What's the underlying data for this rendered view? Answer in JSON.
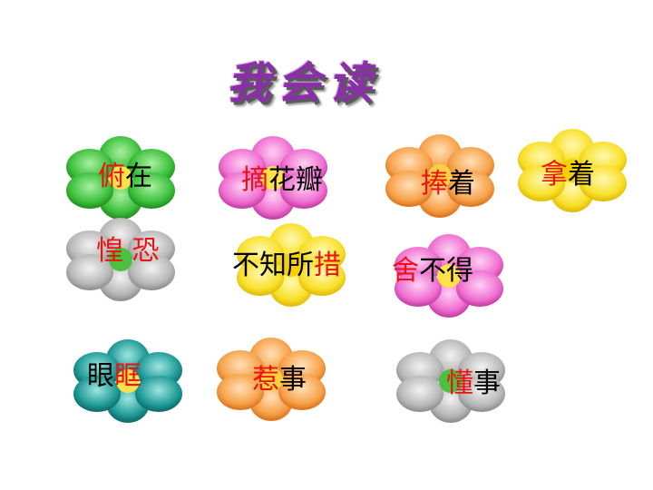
{
  "title": "我会读",
  "colors": {
    "highlight": "#ee1111",
    "normal": "#000000",
    "title": "#8a2fa8"
  },
  "items": [
    {
      "parts": [
        {
          "t": "俯",
          "hl": true
        },
        {
          "t": "在",
          "hl": false
        }
      ],
      "flower_color": "green"
    },
    {
      "parts": [
        {
          "t": "摘",
          "hl": true
        },
        {
          "t": "花瓣",
          "hl": false
        }
      ],
      "flower_color": "pink"
    },
    {
      "parts": [
        {
          "t": "捧",
          "hl": true
        },
        {
          "t": "着",
          "hl": false
        }
      ],
      "flower_color": "orange"
    },
    {
      "parts": [
        {
          "t": "拿",
          "hl": true
        },
        {
          "t": "着",
          "hl": false
        }
      ],
      "flower_color": "yellow"
    },
    {
      "parts": [
        {
          "t": "惶 恐",
          "hl": true
        }
      ],
      "flower_color": "gray"
    },
    {
      "parts": [
        {
          "t": "不知所",
          "hl": false
        },
        {
          "t": "措",
          "hl": true
        }
      ],
      "flower_color": "yellow"
    },
    {
      "parts": [
        {
          "t": "舍",
          "hl": true
        },
        {
          "t": "不得",
          "hl": false
        }
      ],
      "flower_color": "pink"
    },
    {
      "parts": [
        {
          "t": "眼",
          "hl": false
        },
        {
          "t": "眶",
          "hl": true
        }
      ],
      "flower_color": "teal"
    },
    {
      "parts": [
        {
          "t": "惹",
          "hl": true
        },
        {
          "t": "事",
          "hl": false
        }
      ],
      "flower_color": "orange"
    },
    {
      "parts": [
        {
          "t": "懂",
          "hl": true
        },
        {
          "t": "事",
          "hl": false
        }
      ],
      "flower_color": "gray"
    }
  ]
}
